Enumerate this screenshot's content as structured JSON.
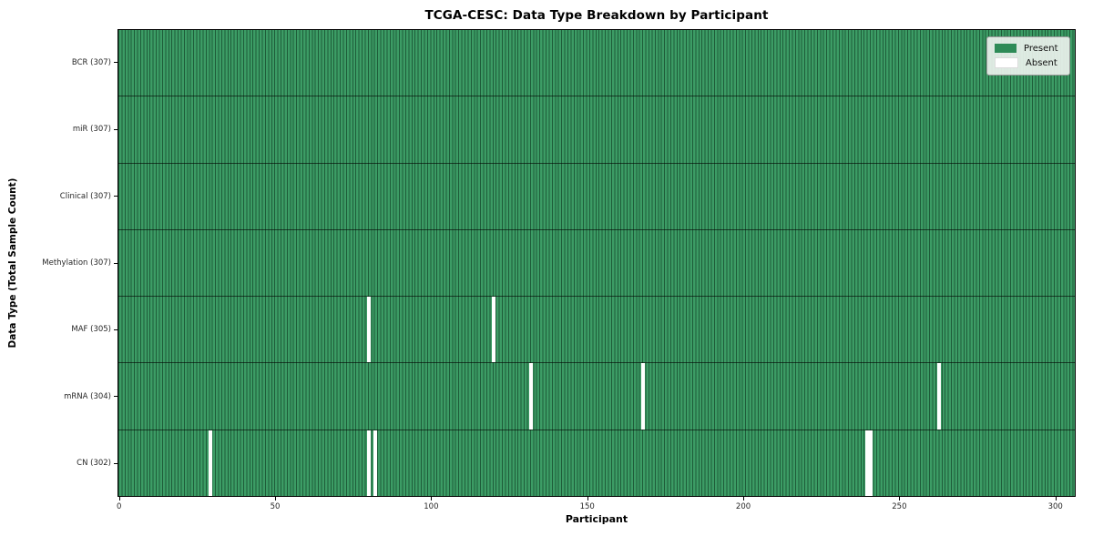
{
  "title": "TCGA-CESC: Data Type Breakdown by Participant",
  "chart_data": {
    "type": "heatmap",
    "title": "TCGA-CESC: Data Type Breakdown by Participant",
    "xlabel": "Participant",
    "ylabel": "Data Type (Total Sample Count)",
    "n_participants": 307,
    "x_range": [
      -0.5,
      306.5
    ],
    "xticks": [
      0,
      50,
      100,
      150,
      200,
      250,
      300
    ],
    "grid": false,
    "legend_position": "upper right",
    "legend": {
      "entries": [
        {
          "label": "Present",
          "color": "#2e8b57"
        },
        {
          "label": "Absent",
          "color": "#ffffff"
        }
      ]
    },
    "colors": {
      "present_fill": "#3c9c65",
      "cell_edge": "#1e5c39",
      "absent_fill": "#ffffff",
      "legend_present_swatch": "#2e8b57"
    },
    "rows": [
      {
        "data_type": "BCR",
        "label": "BCR (307)",
        "present_count": 307,
        "absent_participants": []
      },
      {
        "data_type": "miR",
        "label": "miR (307)",
        "present_count": 307,
        "absent_participants": []
      },
      {
        "data_type": "Clinical",
        "label": "Clinical (307)",
        "present_count": 307,
        "absent_participants": []
      },
      {
        "data_type": "Methylation",
        "label": "Methylation (307)",
        "present_count": 307,
        "absent_participants": []
      },
      {
        "data_type": "MAF",
        "label": "MAF (305)",
        "present_count": 305,
        "absent_participants": [
          80,
          120
        ]
      },
      {
        "data_type": "mRNA",
        "label": "mRNA (304)",
        "present_count": 304,
        "absent_participants": [
          132,
          168,
          263
        ]
      },
      {
        "data_type": "CN",
        "label": "CN (302)",
        "present_count": 302,
        "absent_participants": [
          29,
          80,
          82,
          240,
          241
        ]
      }
    ]
  }
}
